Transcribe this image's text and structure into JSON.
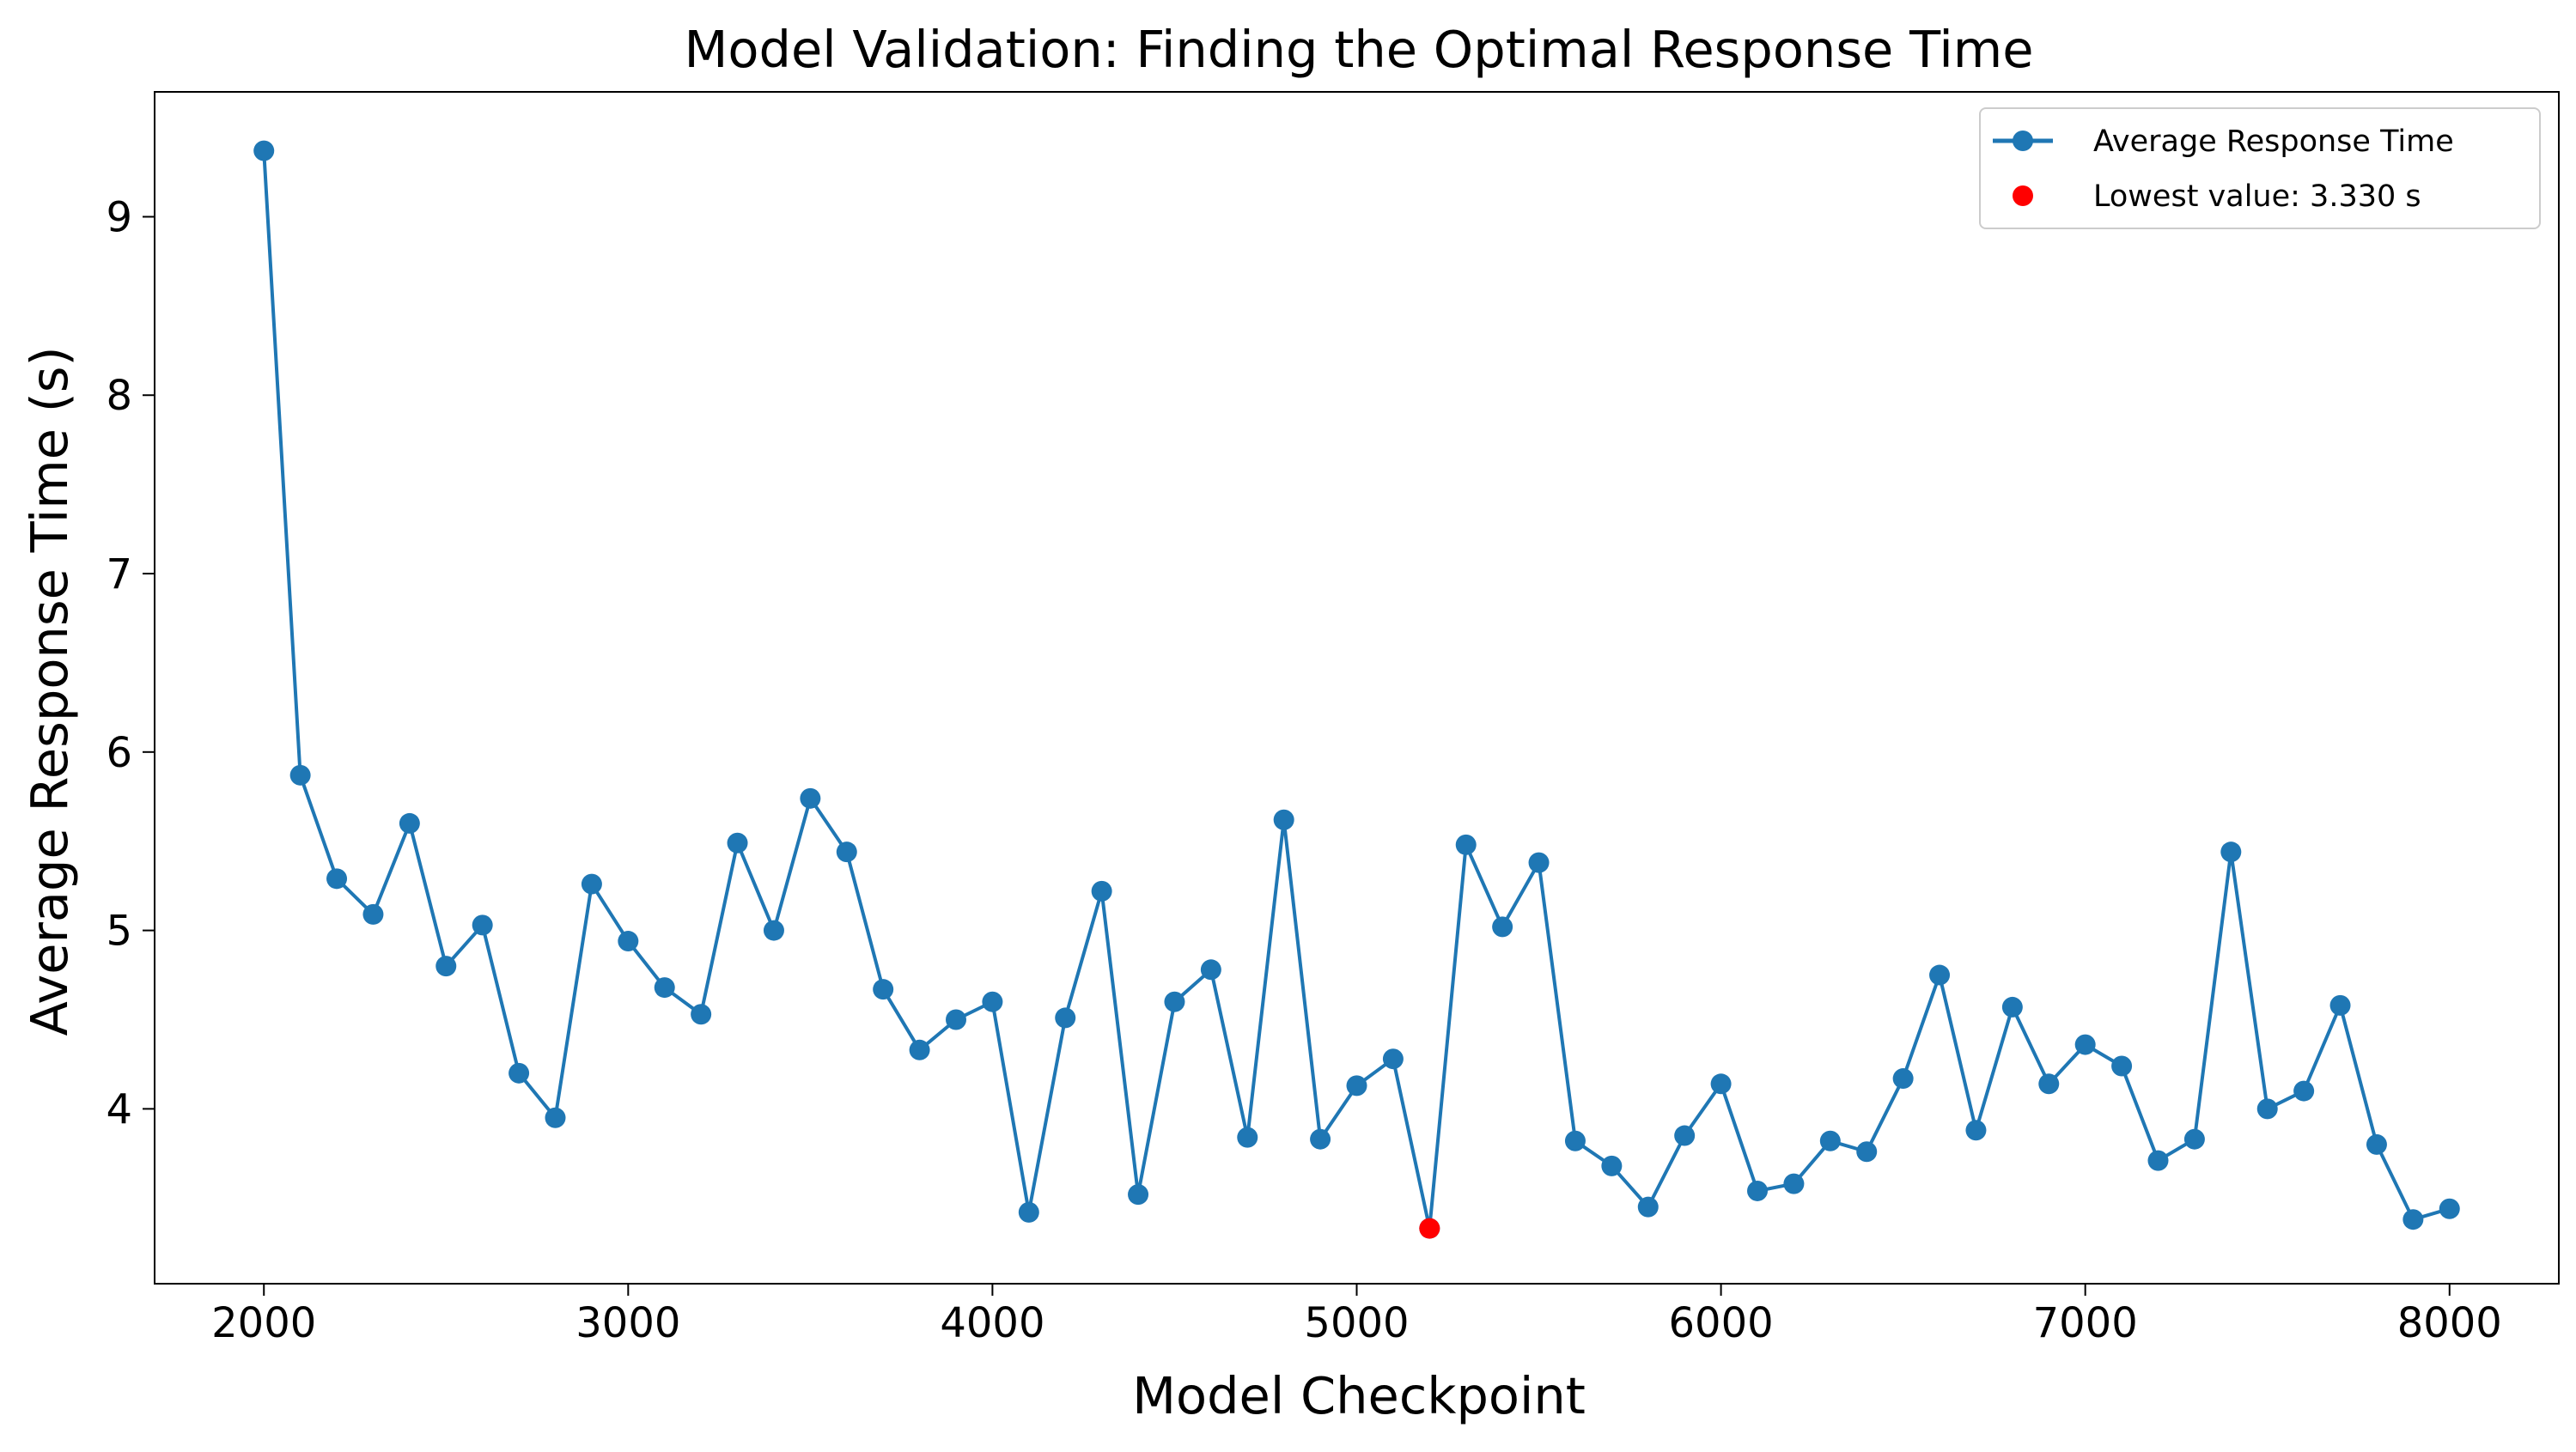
{
  "chart_data": {
    "type": "line",
    "title": "Model Validation: Finding the Optimal Response Time",
    "xlabel": "Model Checkpoint",
    "ylabel": "Average Response Time (s)",
    "xlim": [
      1700,
      8300
    ],
    "ylim": [
      3.02,
      9.7
    ],
    "xticks": [
      2000,
      3000,
      4000,
      5000,
      6000,
      7000,
      8000
    ],
    "yticks": [
      4,
      5,
      6,
      7,
      8,
      9
    ],
    "grid": false,
    "legend_position": "top-right",
    "series": [
      {
        "name": "Average Response Time",
        "color": "#1f77b4",
        "x": [
          2000,
          2100,
          2200,
          2300,
          2400,
          2500,
          2600,
          2700,
          2800,
          2900,
          3000,
          3100,
          3200,
          3300,
          3400,
          3500,
          3600,
          3700,
          3800,
          3900,
          4000,
          4100,
          4200,
          4300,
          4400,
          4500,
          4600,
          4700,
          4800,
          4900,
          5000,
          5100,
          5200,
          5300,
          5400,
          5500,
          5600,
          5700,
          5800,
          5900,
          6000,
          6100,
          6200,
          6300,
          6400,
          6500,
          6600,
          6700,
          6800,
          6900,
          7000,
          7100,
          7200,
          7300,
          7400,
          7500,
          7600,
          7700,
          7800,
          7900,
          8000
        ],
        "values": [
          9.37,
          5.87,
          5.29,
          5.09,
          5.6,
          4.8,
          5.03,
          4.2,
          3.95,
          5.26,
          4.94,
          4.68,
          4.53,
          5.49,
          5.0,
          5.74,
          5.44,
          4.67,
          4.33,
          4.5,
          4.6,
          3.42,
          4.51,
          5.22,
          3.52,
          4.6,
          4.78,
          3.84,
          5.62,
          3.83,
          4.13,
          4.28,
          3.33,
          5.48,
          5.02,
          5.38,
          3.82,
          3.68,
          3.45,
          3.85,
          4.14,
          3.54,
          3.58,
          3.82,
          3.76,
          4.17,
          4.75,
          3.88,
          4.57,
          4.14,
          4.36,
          4.24,
          3.71,
          3.83,
          5.44,
          4.0,
          4.1,
          4.58,
          3.8,
          3.38,
          3.44
        ]
      }
    ],
    "highlight": {
      "name": "Lowest value: 3.330 s",
      "x": 5200,
      "value": 3.33,
      "color": "#ff0000"
    }
  }
}
